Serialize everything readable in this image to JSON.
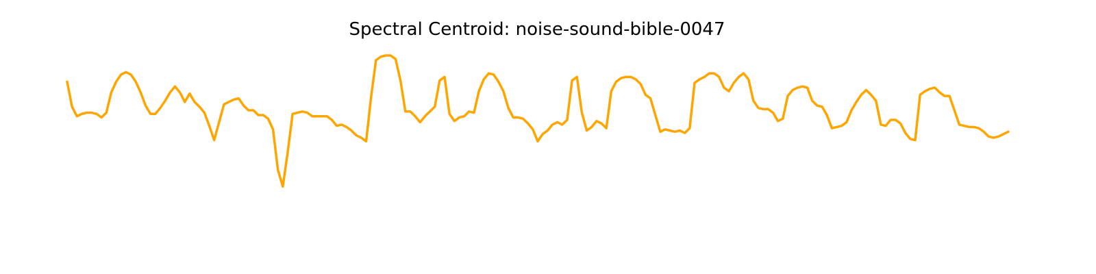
{
  "chart_data": {
    "type": "line",
    "title": "Spectral Centroid: noise-sound-bible-0047",
    "xlabel": "",
    "ylabel": "",
    "axes_visible": false,
    "grid": false,
    "legend": "none",
    "color": "#FFA500",
    "ylim": [
      0,
      1
    ],
    "series": [
      {
        "values": [
          0.78,
          0.57,
          0.49,
          0.51,
          0.52,
          0.52,
          0.51,
          0.48,
          0.52,
          0.69,
          0.78,
          0.84,
          0.86,
          0.84,
          0.78,
          0.69,
          0.58,
          0.51,
          0.51,
          0.56,
          0.62,
          0.69,
          0.74,
          0.69,
          0.61,
          0.68,
          0.61,
          0.57,
          0.52,
          0.41,
          0.29,
          0.44,
          0.59,
          0.61,
          0.63,
          0.64,
          0.58,
          0.54,
          0.54,
          0.5,
          0.5,
          0.47,
          0.38,
          0.04,
          -0.1,
          0.19,
          0.51,
          0.52,
          0.53,
          0.52,
          0.49,
          0.49,
          0.49,
          0.49,
          0.46,
          0.41,
          0.42,
          0.4,
          0.37,
          0.33,
          0.31,
          0.28,
          0.65,
          0.96,
          0.99,
          1.0,
          1.0,
          0.97,
          0.79,
          0.53,
          0.53,
          0.49,
          0.44,
          0.49,
          0.53,
          0.57,
          0.79,
          0.82,
          0.51,
          0.45,
          0.48,
          0.49,
          0.53,
          0.52,
          0.7,
          0.8,
          0.85,
          0.84,
          0.78,
          0.7,
          0.56,
          0.48,
          0.48,
          0.47,
          0.43,
          0.38,
          0.28,
          0.34,
          0.37,
          0.42,
          0.44,
          0.42,
          0.46,
          0.79,
          0.82,
          0.52,
          0.37,
          0.4,
          0.45,
          0.43,
          0.39,
          0.7,
          0.78,
          0.81,
          0.82,
          0.82,
          0.8,
          0.76,
          0.67,
          0.64,
          0.5,
          0.36,
          0.38,
          0.37,
          0.36,
          0.37,
          0.35,
          0.39,
          0.77,
          0.8,
          0.82,
          0.85,
          0.85,
          0.82,
          0.73,
          0.7,
          0.77,
          0.82,
          0.85,
          0.8,
          0.62,
          0.56,
          0.55,
          0.55,
          0.52,
          0.45,
          0.47,
          0.66,
          0.71,
          0.73,
          0.74,
          0.73,
          0.62,
          0.58,
          0.57,
          0.5,
          0.39,
          0.4,
          0.41,
          0.44,
          0.54,
          0.61,
          0.67,
          0.71,
          0.67,
          0.62,
          0.42,
          0.41,
          0.46,
          0.46,
          0.43,
          0.35,
          0.3,
          0.29,
          0.67,
          0.7,
          0.72,
          0.73,
          0.69,
          0.66,
          0.66,
          0.54,
          0.42,
          0.41,
          0.4,
          0.4,
          0.39,
          0.36,
          0.32,
          0.31,
          0.32,
          0.34,
          0.36
        ]
      }
    ]
  }
}
